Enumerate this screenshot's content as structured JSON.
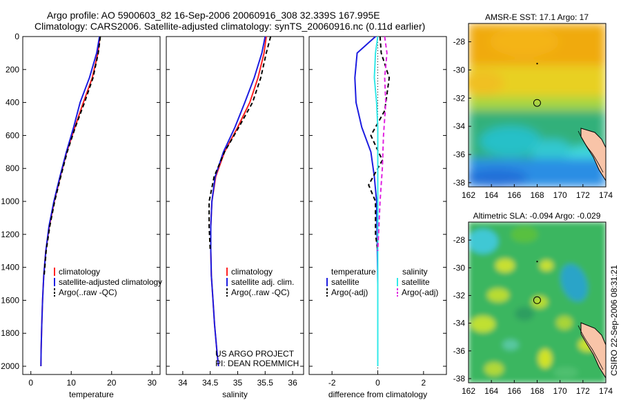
{
  "figure": {
    "title_line1": "Argo profile: AO 5900603_82 16-Sep-2006 20060916_308 32.339S 167.995E",
    "title_line2": "Climatology: CARS2006. Satellite-adjusted climatology: synTS_20060916.nc (0.11d earlier)",
    "side_stamp": "CSIRO 22-Sep-2006 08:31:21",
    "credit_line1": "US ARGO PROJECT",
    "credit_line2": "PI: DEAN ROEMMICH"
  },
  "colors": {
    "climatology": "#ff2020",
    "satellite": "#1c1ce0",
    "argo": "#000000",
    "sat_salinity": "#30e8e8",
    "argo_salinity": "#e020e0"
  },
  "chart_data": [
    {
      "type": "line",
      "xlabel": "temperature",
      "ylabel": "",
      "xlim": [
        -2,
        32
      ],
      "ylim": [
        2050,
        0
      ],
      "xticks": [
        0,
        10,
        20,
        30
      ],
      "yticks": [
        0,
        200,
        400,
        600,
        800,
        1000,
        1200,
        1400,
        1600,
        1800,
        2000
      ],
      "legend_position": "lower-right",
      "series": [
        {
          "name": "climatology",
          "style": "solid",
          "color": "#ff2020",
          "x": [
            17.1,
            16.6,
            15.2,
            13.0,
            10.9,
            8.9,
            7.3,
            5.8,
            4.6,
            3.7,
            3.2,
            2.9,
            2.7,
            2.55,
            2.5
          ],
          "y": [
            0,
            100,
            250,
            400,
            550,
            700,
            850,
            1000,
            1150,
            1300,
            1450,
            1600,
            1750,
            1900,
            2000
          ]
        },
        {
          "name": "satellite-adjusted climatology",
          "style": "solid",
          "color": "#1c1ce0",
          "x": [
            17.0,
            16.3,
            14.5,
            12.2,
            10.6,
            8.8,
            7.2,
            5.7,
            4.5,
            3.7,
            3.2,
            2.9,
            2.7,
            2.55,
            2.5
          ],
          "y": [
            0,
            100,
            250,
            400,
            550,
            700,
            850,
            1000,
            1150,
            1300,
            1450,
            1600,
            1750,
            1900,
            2000
          ]
        },
        {
          "name": "Argo(..raw -QC)",
          "style": "dashed",
          "color": "#000000",
          "x": [
            17.2,
            16.7,
            15.4,
            13.3,
            11.0,
            9.0,
            7.4,
            5.9,
            4.7,
            3.8,
            3.3
          ],
          "y": [
            0,
            100,
            250,
            400,
            550,
            700,
            850,
            1000,
            1150,
            1300,
            1450
          ]
        }
      ]
    },
    {
      "type": "line",
      "xlabel": "salinity",
      "ylabel": "",
      "xlim": [
        33.7,
        36.2
      ],
      "ylim": [
        2050,
        0
      ],
      "xticks": [
        34,
        34.5,
        35,
        35.5,
        36
      ],
      "legend_position": "lower-right",
      "series": [
        {
          "name": "climatology",
          "style": "solid",
          "color": "#ff2020",
          "x": [
            35.52,
            35.48,
            35.37,
            35.22,
            35.0,
            34.76,
            34.6,
            34.53,
            34.51,
            34.51,
            34.52,
            34.55,
            34.58,
            34.62,
            34.65
          ],
          "y": [
            0,
            100,
            250,
            400,
            550,
            700,
            850,
            1000,
            1150,
            1300,
            1450,
            1600,
            1750,
            1900,
            2000
          ]
        },
        {
          "name": "satellite adj. clim.",
          "style": "solid",
          "color": "#1c1ce0",
          "x": [
            35.5,
            35.44,
            35.3,
            35.13,
            34.95,
            34.74,
            34.59,
            34.53,
            34.51,
            34.51,
            34.52,
            34.55,
            34.58,
            34.62,
            34.65
          ],
          "y": [
            0,
            100,
            250,
            400,
            550,
            700,
            850,
            1000,
            1150,
            1300,
            1450,
            1600,
            1750,
            1900,
            2000
          ]
        },
        {
          "name": "Argo(..raw -QC)",
          "style": "dashed",
          "color": "#000000",
          "x": [
            35.6,
            35.52,
            35.42,
            35.27,
            35.02,
            34.76,
            34.57,
            34.48,
            34.48,
            34.5
          ],
          "y": [
            0,
            100,
            250,
            400,
            550,
            700,
            850,
            1000,
            1150,
            1300
          ]
        }
      ]
    },
    {
      "type": "line",
      "xlabel": "difference from climatology",
      "ylabel": "",
      "xlim": [
        -3,
        3
      ],
      "ylim": [
        2050,
        0
      ],
      "xticks": [
        -2,
        0,
        2
      ],
      "legend_position": "lower-right",
      "legend_headers": [
        "temperature",
        "salinity"
      ],
      "series": [
        {
          "name": "satellite",
          "group": "temperature",
          "style": "solid",
          "color": "#1c1ce0",
          "x": [
            -0.1,
            -0.9,
            -1.0,
            -0.95,
            -0.7,
            -0.3,
            -0.15,
            -0.05,
            0,
            0
          ],
          "y": [
            0,
            100,
            250,
            400,
            550,
            700,
            850,
            1000,
            1500,
            2000
          ]
        },
        {
          "name": "Argo(-adj)",
          "group": "temperature",
          "style": "dashed",
          "color": "#000000",
          "x": [
            0.1,
            0.15,
            0.5,
            0.3,
            -0.3,
            0.2,
            -0.4,
            -0.1,
            -0.1,
            0
          ],
          "y": [
            0,
            100,
            250,
            450,
            600,
            750,
            900,
            1000,
            1200,
            1300
          ]
        },
        {
          "name": "satellite",
          "group": "salinity",
          "style": "solid",
          "color": "#30e8e8",
          "x": [
            0,
            -0.1,
            -0.15,
            -0.05,
            0,
            0,
            0,
            0
          ],
          "y": [
            0,
            100,
            250,
            400,
            550,
            700,
            1000,
            2000
          ]
        },
        {
          "name": "Argo(-adj)",
          "group": "salinity",
          "style": "dashed",
          "color": "#e020e0",
          "x": [
            0.3,
            0.4,
            0.3,
            0.35,
            0.25,
            0.2,
            0.1,
            0
          ],
          "y": [
            0,
            100,
            250,
            400,
            600,
            800,
            1000,
            1300
          ]
        }
      ]
    },
    {
      "type": "heatmap",
      "title": "AMSR-E SST: 17.1 Argo: 17",
      "xlim": [
        162,
        174
      ],
      "ylim": [
        -38.3,
        -26.7
      ],
      "xticks": [
        162,
        164,
        166,
        168,
        170,
        172,
        174
      ],
      "yticks": [
        -28,
        -30,
        -32,
        -34,
        -36,
        -38
      ],
      "marker": {
        "lon": 167.995,
        "lat": -32.339
      }
    },
    {
      "type": "heatmap",
      "title": "Altimetric SLA: -0.094 Argo: -0.029",
      "xlim": [
        162,
        174
      ],
      "ylim": [
        -38.3,
        -26.7
      ],
      "xticks": [
        162,
        164,
        166,
        168,
        170,
        172,
        174
      ],
      "yticks": [
        -28,
        -30,
        -32,
        -34,
        -36,
        -38
      ],
      "marker": {
        "lon": 167.995,
        "lat": -32.339
      }
    }
  ]
}
